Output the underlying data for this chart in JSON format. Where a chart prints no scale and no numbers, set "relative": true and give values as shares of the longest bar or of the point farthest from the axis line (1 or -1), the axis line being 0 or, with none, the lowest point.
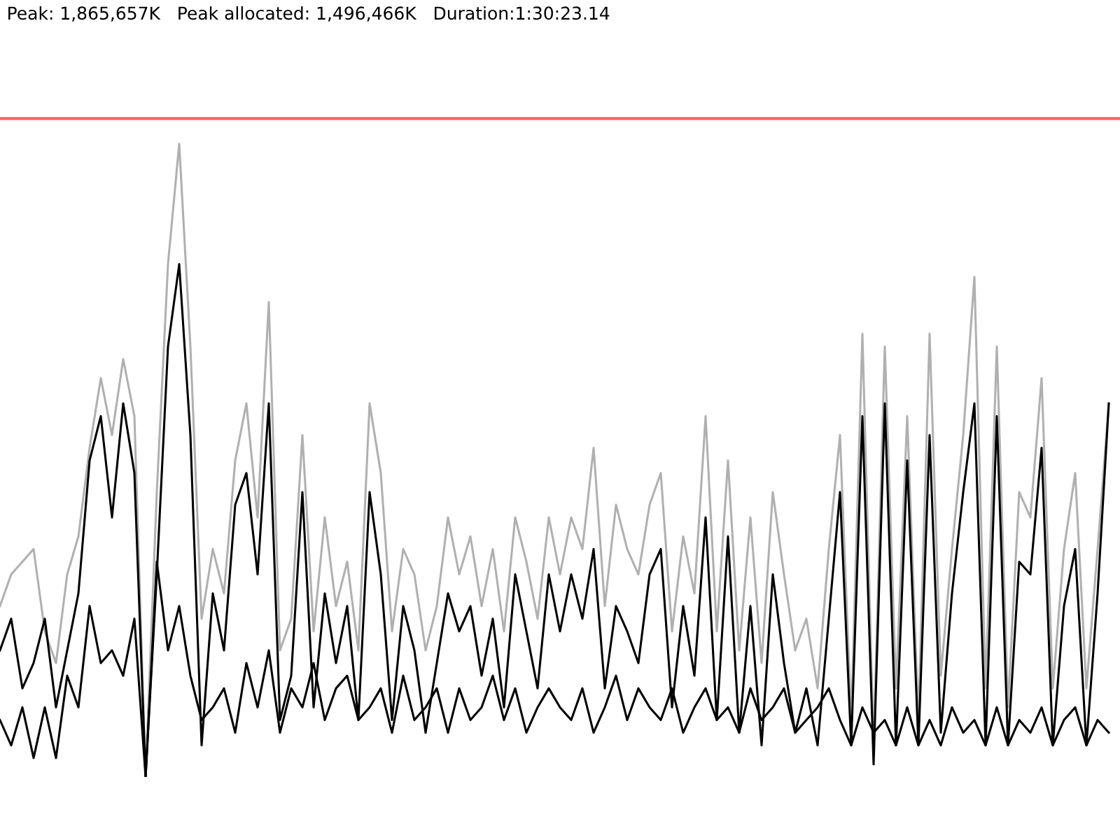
{
  "chart_data": {
    "type": "line",
    "relative": true,
    "title": "Peak: 1,865,657K   Peak allocated: 1,496,466K   Duration:1:30:23.14",
    "categories": [
      null,
      null,
      null,
      null,
      null,
      null,
      null,
      null,
      null,
      null,
      null,
      null,
      null,
      null,
      null,
      null,
      null,
      null,
      null,
      null,
      null,
      null,
      null,
      null,
      null,
      null,
      null,
      null,
      null,
      null,
      null,
      null,
      null,
      null,
      null,
      null,
      null,
      null,
      null,
      null,
      null,
      null,
      null,
      null,
      null,
      null,
      null,
      null,
      null,
      null,
      null,
      null,
      null,
      null,
      null,
      null,
      null,
      null,
      null,
      null,
      null,
      null,
      null,
      null,
      null,
      null,
      null,
      null,
      null,
      null,
      null,
      null,
      null,
      null,
      null,
      null,
      null,
      null,
      null,
      null,
      null,
      null,
      null,
      null,
      null,
      null,
      null,
      null,
      null,
      null,
      null,
      null,
      null,
      null,
      null,
      null,
      null,
      null,
      null,
      null
    ],
    "series": [
      {
        "color": "#b0b0b0",
        "values": [
          0.27,
          0.32,
          0.34,
          0.36,
          0.23,
          0.18,
          0.32,
          0.38,
          0.52,
          0.63,
          0.54,
          0.66,
          0.57,
          0,
          0.45,
          0.81,
          1.0,
          0.68,
          0.25,
          0.36,
          0.29,
          0.5,
          0.59,
          0.41,
          0.75,
          0.2,
          0.25,
          0.54,
          0.23,
          0.41,
          0.27,
          0.34,
          0.2,
          0.59,
          0.48,
          0.23,
          0.36,
          0.32,
          0.2,
          0.27,
          0.41,
          0.32,
          0.38,
          0.27,
          0.36,
          0.23,
          0.41,
          0.34,
          0.25,
          0.41,
          0.32,
          0.41,
          0.36,
          0.52,
          0.27,
          0.43,
          0.36,
          0.32,
          0.43,
          0.48,
          0.23,
          0.38,
          0.29,
          0.57,
          0.23,
          0.5,
          0.2,
          0.41,
          0.18,
          0.45,
          0.32,
          0.2,
          0.25,
          0.14,
          0.36,
          0.54,
          0.09,
          0.7,
          0.05,
          0.68,
          0.14,
          0.57,
          0.09,
          0.7,
          0.16,
          0.36,
          0.54,
          0.79,
          0.14,
          0.68,
          0.11,
          0.45,
          0.41,
          0.63,
          0.14,
          0.36,
          0.48,
          0.14,
          0.36,
          0.59
        ]
      },
      {
        "color": "#000000",
        "values": [
          0.2,
          0.25,
          0.14,
          0.18,
          0.25,
          0.11,
          0.2,
          0.29,
          0.5,
          0.57,
          0.41,
          0.59,
          0.48,
          0,
          0.32,
          0.68,
          0.81,
          0.54,
          0.05,
          0.29,
          0.2,
          0.43,
          0.48,
          0.32,
          0.59,
          0.09,
          0.16,
          0.45,
          0.11,
          0.29,
          0.18,
          0.27,
          0.09,
          0.45,
          0.32,
          0.09,
          0.27,
          0.2,
          0.07,
          0.18,
          0.29,
          0.23,
          0.27,
          0.16,
          0.25,
          0.11,
          0.32,
          0.23,
          0.14,
          0.32,
          0.23,
          0.32,
          0.25,
          0.36,
          0.14,
          0.27,
          0.23,
          0.18,
          0.32,
          0.36,
          0.11,
          0.27,
          0.16,
          0.41,
          0.09,
          0.38,
          0.07,
          0.27,
          0.05,
          0.32,
          0.18,
          0.07,
          0.14,
          0.05,
          0.25,
          0.45,
          0.05,
          0.57,
          0.02,
          0.59,
          0.05,
          0.5,
          0.05,
          0.54,
          0.07,
          0.29,
          0.45,
          0.59,
          0.05,
          0.57,
          0.05,
          0.34,
          0.32,
          0.52,
          0.05,
          0.27,
          0.36,
          0.05,
          0.29,
          0.59
        ]
      },
      {
        "color": "#000000",
        "values": [
          0.09,
          0.05,
          0.11,
          0.03,
          0.11,
          0.03,
          0.16,
          0.11,
          0.27,
          0.18,
          0.2,
          0.16,
          0.25,
          0,
          0.34,
          0.2,
          0.27,
          0.16,
          0.09,
          0.11,
          0.14,
          0.07,
          0.18,
          0.11,
          0.2,
          0.07,
          0.14,
          0.11,
          0.18,
          0.09,
          0.14,
          0.16,
          0.09,
          0.11,
          0.14,
          0.07,
          0.16,
          0.09,
          0.11,
          0.14,
          0.07,
          0.14,
          0.09,
          0.11,
          0.16,
          0.09,
          0.14,
          0.07,
          0.11,
          0.14,
          0.11,
          0.09,
          0.14,
          0.07,
          0.11,
          0.16,
          0.09,
          0.14,
          0.11,
          0.09,
          0.14,
          0.07,
          0.11,
          0.14,
          0.09,
          0.11,
          0.07,
          0.14,
          0.09,
          0.11,
          0.14,
          0.07,
          0.09,
          0.11,
          0.14,
          0.09,
          0.05,
          0.11,
          0.07,
          0.09,
          0.05,
          0.11,
          0.05,
          0.09,
          0.05,
          0.11,
          0.07,
          0.09,
          0.05,
          0.11,
          0.05,
          0.09,
          0.07,
          0.11,
          0.05,
          0.09,
          0.11,
          0.05,
          0.09,
          0.07
        ]
      }
    ],
    "ref_lines": [
      {
        "axis": "y",
        "value": 1.04,
        "color": "#ff6060"
      }
    ],
    "legend": false,
    "marker": "none",
    "line_style": "solid"
  }
}
